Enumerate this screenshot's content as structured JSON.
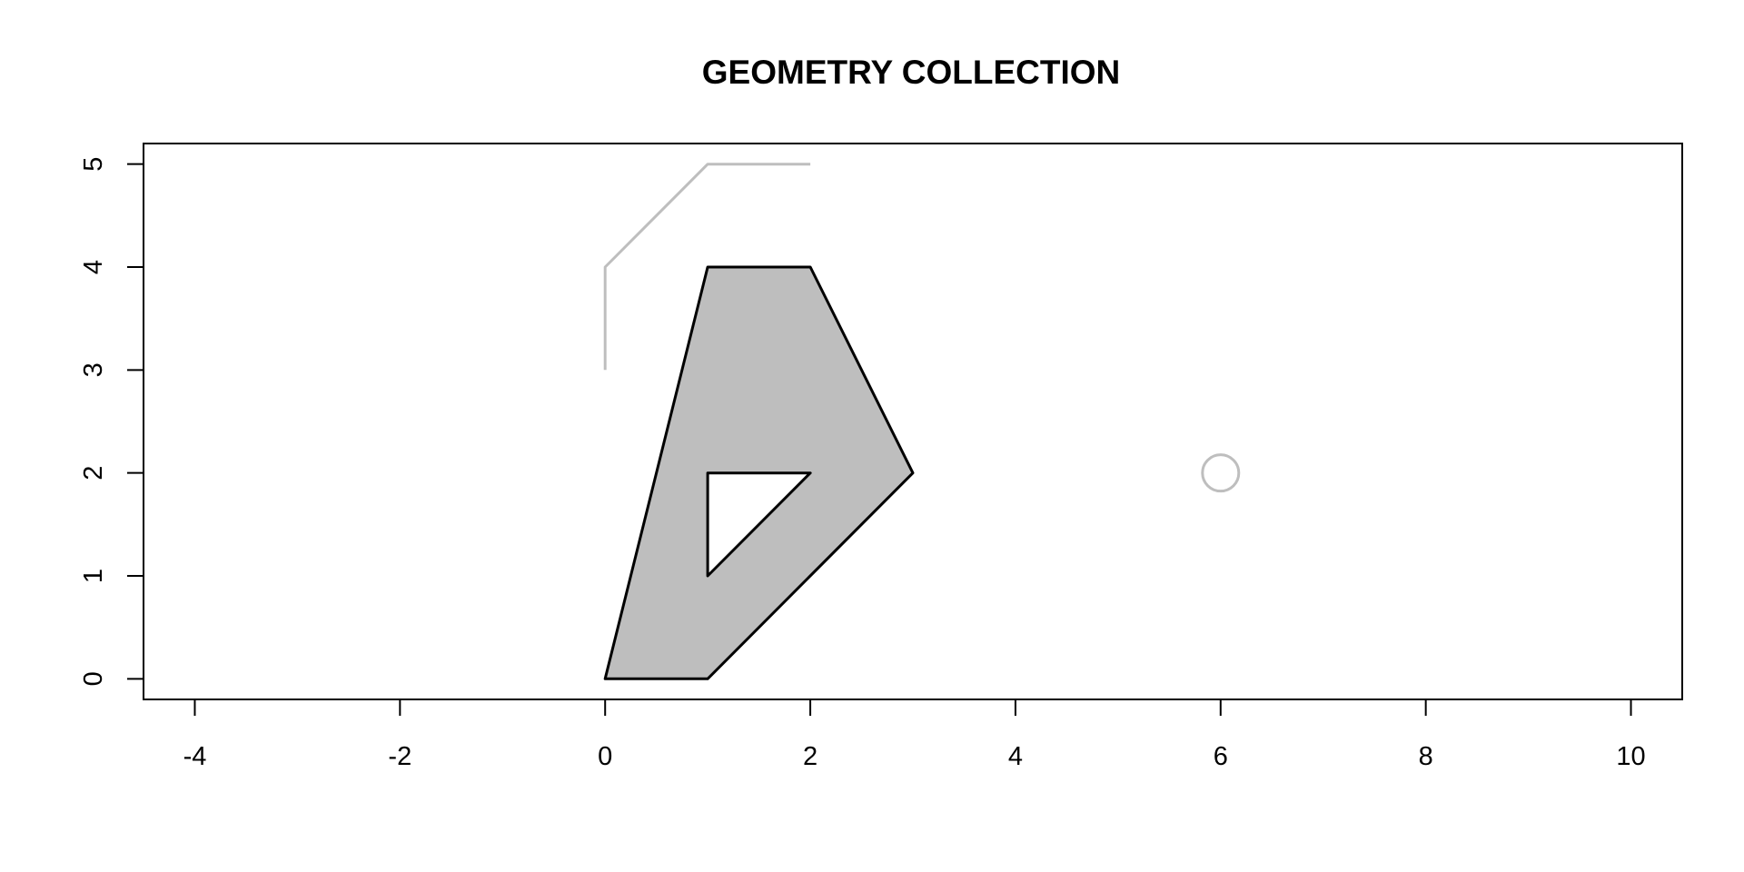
{
  "chart_data": {
    "type": "scatter",
    "title": "GEOMETRY COLLECTION",
    "xlabel": "",
    "ylabel": "",
    "xlim": [
      -4.5,
      10.5
    ],
    "ylim": [
      -0.2,
      5.2
    ],
    "x_ticks": [
      -4,
      -2,
      0,
      2,
      4,
      6,
      8,
      10
    ],
    "y_ticks": [
      0,
      1,
      2,
      3,
      4,
      5
    ],
    "grid": false,
    "geometries": [
      {
        "kind": "polygon",
        "exterior": [
          [
            0,
            0
          ],
          [
            1,
            0
          ],
          [
            3,
            2
          ],
          [
            2,
            4
          ],
          [
            1,
            4
          ],
          [
            0,
            0
          ]
        ],
        "holes": [
          [
            [
              1,
              1
            ],
            [
              2,
              2
            ],
            [
              1,
              2
            ],
            [
              1,
              1
            ]
          ]
        ],
        "fill": "#bebebe",
        "stroke": "#000000"
      },
      {
        "kind": "linestring",
        "points": [
          [
            0,
            3
          ],
          [
            0,
            4
          ],
          [
            1,
            5
          ],
          [
            2,
            5
          ]
        ],
        "stroke": "#bebebe"
      },
      {
        "kind": "point",
        "point": [
          6,
          2
        ],
        "stroke": "#bebebe"
      }
    ]
  }
}
